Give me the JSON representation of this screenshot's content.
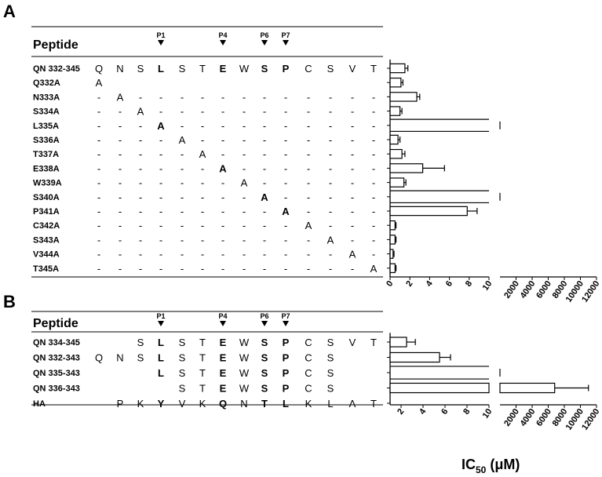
{
  "panels": {
    "A": {
      "letter": "A",
      "header": "Peptide",
      "positions": [
        {
          "label": "P1",
          "col": 3
        },
        {
          "label": "P4",
          "col": 6
        },
        {
          "label": "P6",
          "col": 8
        },
        {
          "label": "P7",
          "col": 9
        }
      ],
      "bold_cols": [
        3,
        6,
        8,
        9
      ],
      "rows": [
        {
          "label": "QN 332-345",
          "residues": [
            "Q",
            "N",
            "S",
            "L",
            "S",
            "T",
            "E",
            "W",
            "S",
            "P",
            "C",
            "S",
            "V",
            "T"
          ]
        },
        {
          "label": "Q332A",
          "residues": [
            "A",
            "",
            "",
            "",
            "",
            "",
            "",
            "",
            "",
            "",
            "",
            "",
            "",
            ""
          ]
        },
        {
          "label": "N333A",
          "residues": [
            "-",
            "A",
            "-",
            "-",
            "-",
            "-",
            "-",
            "-",
            "-",
            "-",
            "-",
            "-",
            "-",
            "-"
          ]
        },
        {
          "label": "S334A",
          "residues": [
            "-",
            "-",
            "A",
            "-",
            "-",
            "-",
            "-",
            "-",
            "-",
            "-",
            "-",
            "-",
            "-",
            "-"
          ]
        },
        {
          "label": "L335A",
          "residues": [
            "-",
            "-",
            "-",
            "A",
            "-",
            "-",
            "-",
            "-",
            "-",
            "-",
            "-",
            "-",
            "-",
            "-"
          ]
        },
        {
          "label": "S336A",
          "residues": [
            "-",
            "-",
            "-",
            "-",
            "A",
            "-",
            "-",
            "-",
            "-",
            "-",
            "-",
            "-",
            "-",
            "-"
          ]
        },
        {
          "label": "T337A",
          "residues": [
            "-",
            "-",
            "-",
            "-",
            "-",
            "A",
            "-",
            "-",
            "-",
            "-",
            "-",
            "-",
            "-",
            "-"
          ]
        },
        {
          "label": "E338A",
          "residues": [
            "-",
            "-",
            "-",
            "-",
            "-",
            "-",
            "A",
            "-",
            "-",
            "-",
            "-",
            "-",
            "-",
            "-"
          ]
        },
        {
          "label": "W339A",
          "residues": [
            "-",
            "-",
            "-",
            "-",
            "-",
            "-",
            "-",
            "A",
            "-",
            "-",
            "-",
            "-",
            "-",
            "-"
          ]
        },
        {
          "label": "S340A",
          "residues": [
            "-",
            "-",
            "-",
            "-",
            "-",
            "-",
            "-",
            "-",
            "A",
            "-",
            "-",
            "-",
            "-",
            "-"
          ]
        },
        {
          "label": "P341A",
          "residues": [
            "-",
            "-",
            "-",
            "-",
            "-",
            "-",
            "-",
            "-",
            "-",
            "A",
            "-",
            "-",
            "-",
            "-"
          ]
        },
        {
          "label": "C342A",
          "residues": [
            "-",
            "-",
            "-",
            "-",
            "-",
            "-",
            "-",
            "-",
            "-",
            "-",
            "A",
            "-",
            "-",
            "-"
          ]
        },
        {
          "label": "S343A",
          "residues": [
            "-",
            "-",
            "-",
            "-",
            "-",
            "-",
            "-",
            "-",
            "-",
            "-",
            "-",
            "A",
            "-",
            "-"
          ]
        },
        {
          "label": "V344A",
          "residues": [
            "-",
            "-",
            "-",
            "-",
            "-",
            "-",
            "-",
            "-",
            "-",
            "-",
            "-",
            "-",
            "A",
            "-"
          ]
        },
        {
          "label": "T345A",
          "residues": [
            "-",
            "-",
            "-",
            "-",
            "-",
            "-",
            "-",
            "-",
            "-",
            "-",
            "-",
            "-",
            "-",
            "A"
          ]
        }
      ]
    },
    "B": {
      "letter": "B",
      "header": "Peptide",
      "positions": [
        {
          "label": "P1",
          "col": 3
        },
        {
          "label": "P4",
          "col": 6
        },
        {
          "label": "P6",
          "col": 8
        },
        {
          "label": "P7",
          "col": 9
        }
      ],
      "bold_cols": [
        3,
        6,
        8,
        9
      ],
      "rows": [
        {
          "label": "QN 334-345",
          "residues": [
            "",
            "",
            "S",
            "L",
            "S",
            "T",
            "E",
            "W",
            "S",
            "P",
            "C",
            "S",
            "V",
            "T"
          ]
        },
        {
          "label": "QN 332-343",
          "residues": [
            "Q",
            "N",
            "S",
            "L",
            "S",
            "T",
            "E",
            "W",
            "S",
            "P",
            "C",
            "S",
            "",
            ""
          ]
        },
        {
          "label": "QN 335-343",
          "residues": [
            "",
            "",
            "",
            "L",
            "S",
            "T",
            "E",
            "W",
            "S",
            "P",
            "C",
            "S",
            "",
            ""
          ]
        },
        {
          "label": "QN 336-343",
          "residues": [
            "",
            "",
            "",
            "",
            "S",
            "T",
            "E",
            "W",
            "S",
            "P",
            "C",
            "S",
            "",
            ""
          ]
        },
        {
          "label": "HA",
          "residues": [
            "",
            "P",
            "K",
            "Y",
            "V",
            "K",
            "Q",
            "N",
            "T",
            "L",
            "K",
            "L",
            "A",
            "T"
          ]
        }
      ]
    }
  },
  "chart_data": [
    {
      "type": "bar",
      "orientation": "horizontal",
      "panel": "A",
      "categories": [
        "QN 332-345",
        "Q332A",
        "N333A",
        "S334A",
        "L335A",
        "S336A",
        "T337A",
        "E338A",
        "W339A",
        "S340A",
        "P341A",
        "C342A",
        "S343A",
        "V344A",
        "T345A"
      ],
      "values": [
        1.5,
        1.1,
        2.7,
        1.0,
        null,
        0.8,
        1.2,
        3.3,
        1.4,
        null,
        7.8,
        0.5,
        0.5,
        0.3,
        0.5
      ],
      "errors": [
        0.3,
        0.2,
        0.3,
        0.2,
        null,
        0.2,
        0.3,
        2.2,
        0.2,
        null,
        1.0,
        0.1,
        0.1,
        0.1,
        0.1
      ],
      "exceeds_axis": [
        false,
        false,
        false,
        false,
        true,
        false,
        false,
        false,
        false,
        true,
        false,
        false,
        false,
        false,
        false
      ],
      "x_axis_broken": true,
      "xlim_low": [
        0,
        10
      ],
      "xlim_high": [
        0,
        12000
      ],
      "ticks_low": [
        "0",
        "2",
        "4",
        "6",
        "8",
        "10"
      ],
      "ticks_high": [
        "2000",
        "4000",
        "6000",
        "8000",
        "10000",
        "12000"
      ],
      "xlabel": ""
    },
    {
      "type": "bar",
      "orientation": "horizontal",
      "panel": "B",
      "categories": [
        "QN 334-345",
        "QN 332-343",
        "QN 335-343",
        "QN 336-343",
        "HA"
      ],
      "values": [
        2.5,
        5.5,
        null,
        6800,
        null
      ],
      "errors": [
        0.8,
        1.0,
        null,
        4200,
        null
      ],
      "exceeds_axis": [
        false,
        false,
        true,
        false,
        false
      ],
      "x_axis_broken": true,
      "xlim_low": [
        1,
        10
      ],
      "xlim_high": [
        0,
        12000
      ],
      "ticks_low": [
        "2",
        "4",
        "6",
        "8",
        "10"
      ],
      "ticks_high": [
        "2000",
        "4000",
        "6000",
        "8000",
        "10000",
        "12000"
      ],
      "xlabel": "IC50 (μM)",
      "xlabel_main": "IC",
      "xlabel_sub": "50",
      "xlabel_unit": " (μM)"
    }
  ]
}
